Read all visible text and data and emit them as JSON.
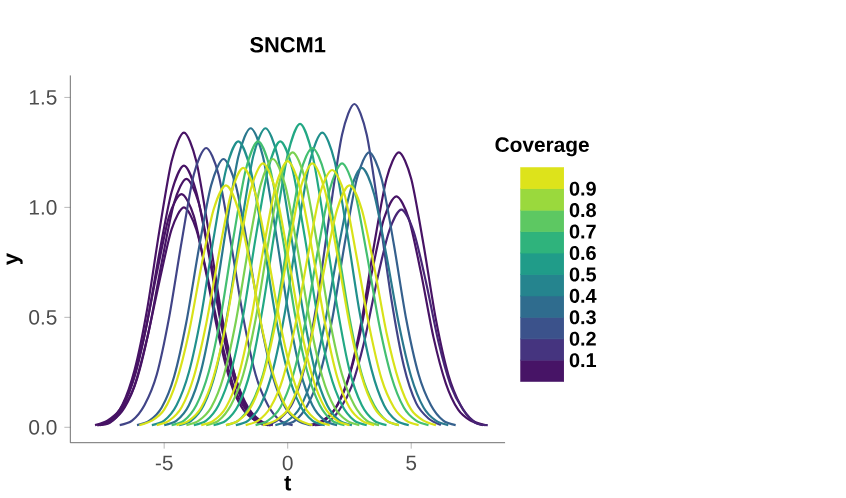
{
  "chart_data": {
    "type": "line",
    "title": "SNCM1",
    "xlabel": "t",
    "ylabel": "y",
    "clabel": "Coverage",
    "clim": [
      0,
      1
    ],
    "cticks": [
      0.1,
      0.2,
      0.3,
      0.4,
      0.5,
      0.6,
      0.7,
      0.8,
      0.9
    ],
    "xlim": [
      -8.8,
      8.8
    ],
    "ylim": [
      -0.07,
      1.6
    ],
    "xticks": [
      -5,
      0,
      5
    ],
    "yticks": [
      {
        "value": 0,
        "label": "0.0"
      },
      0.5,
      {
        "value": 1,
        "label": "1.0"
      },
      1.5
    ],
    "series": [
      {
        "color": "#471365",
        "x": [
          -7.7,
          -7.2,
          -6.7,
          -6.2,
          -5.7,
          -5.2,
          -4.7,
          -4.2,
          -3.7,
          -3.2,
          -2.7,
          -2.2,
          -1.7,
          -1.2,
          -0.7
        ],
        "values": [
          0.01,
          0.03,
          0.1,
          0.26,
          0.53,
          0.89,
          1.21,
          1.34,
          1.21,
          0.89,
          0.53,
          0.26,
          0.1,
          0.03,
          0.01
        ]
      },
      {
        "color": "#471365",
        "x": [
          -7.7,
          -7.2,
          -6.7,
          -6.2,
          -5.7,
          -5.2,
          -4.7,
          -4.2,
          -3.7,
          -3.2,
          -2.7,
          -2.2,
          -1.7,
          -1.2,
          -0.7
        ],
        "values": [
          0.01,
          0.03,
          0.09,
          0.23,
          0.47,
          0.79,
          1.07,
          1.19,
          1.07,
          0.79,
          0.47,
          0.23,
          0.09,
          0.03,
          0.01
        ]
      },
      {
        "color": "#471365",
        "x": [
          -7.6,
          -7.1,
          -6.6,
          -6.1,
          -5.6,
          -5.1,
          -4.6,
          -4.1,
          -3.6,
          -3.1,
          -2.6,
          -2.1,
          -1.6,
          -1.1,
          -0.6
        ],
        "values": [
          0.01,
          0.03,
          0.09,
          0.22,
          0.45,
          0.75,
          1.02,
          1.13,
          1.02,
          0.75,
          0.45,
          0.22,
          0.09,
          0.03,
          0.01
        ]
      },
      {
        "color": "#471365",
        "x": [
          -7.8,
          -7.3,
          -6.8,
          -6.3,
          -5.8,
          -5.3,
          -4.8,
          -4.3,
          -3.8,
          -3.3,
          -2.8,
          -2.3,
          -1.8,
          -1.3,
          -0.8
        ],
        "values": [
          0.01,
          0.03,
          0.08,
          0.2,
          0.42,
          0.7,
          0.96,
          1.06,
          0.96,
          0.7,
          0.42,
          0.2,
          0.08,
          0.03,
          0.01
        ]
      },
      {
        "color": "#471365",
        "x": [
          -7.7,
          -7.2,
          -6.7,
          -6.2,
          -5.7,
          -5.2,
          -4.7,
          -4.2,
          -3.7,
          -3.2,
          -2.7,
          -2.2,
          -1.7,
          -1.2,
          -0.7
        ],
        "values": [
          0.01,
          0.02,
          0.08,
          0.19,
          0.4,
          0.66,
          0.9,
          1.0,
          0.9,
          0.66,
          0.4,
          0.19,
          0.08,
          0.02,
          0.01
        ]
      },
      {
        "color": "#471365",
        "x": [
          1,
          1.5,
          2,
          2.5,
          3,
          3.5,
          4,
          4.5,
          5,
          5.5,
          6,
          6.5,
          7,
          7.5,
          8
        ],
        "values": [
          0.01,
          0.03,
          0.1,
          0.24,
          0.49,
          0.83,
          1.13,
          1.25,
          1.13,
          0.83,
          0.49,
          0.24,
          0.1,
          0.03,
          0.01
        ]
      },
      {
        "color": "#471365",
        "x": [
          0.9,
          1.4,
          1.9,
          2.4,
          2.9,
          3.4,
          3.9,
          4.4,
          4.9,
          5.4,
          5.9,
          6.4,
          6.9,
          7.4,
          7.9
        ],
        "values": [
          0.01,
          0.03,
          0.08,
          0.2,
          0.41,
          0.7,
          0.95,
          1.05,
          0.95,
          0.7,
          0.41,
          0.2,
          0.08,
          0.03,
          0.01
        ]
      },
      {
        "color": "#482576",
        "x": [
          1.1,
          1.6,
          2.1,
          2.6,
          3.1,
          3.6,
          4.1,
          4.6,
          5.1,
          5.6,
          6.1,
          6.6,
          7.1,
          7.6,
          8.1
        ],
        "values": [
          0.01,
          0.02,
          0.08,
          0.19,
          0.39,
          0.66,
          0.89,
          0.99,
          0.89,
          0.66,
          0.39,
          0.19,
          0.08,
          0.02,
          0.01
        ]
      },
      {
        "color": "#414487",
        "x": [
          -0.8,
          -0.3,
          0.2,
          0.7,
          1.2,
          1.7,
          2.2,
          2.7,
          3.2,
          3.7,
          4.2,
          4.7,
          5.2,
          5.7,
          6.2
        ],
        "values": [
          0.01,
          0.04,
          0.11,
          0.28,
          0.58,
          0.97,
          1.33,
          1.47,
          1.33,
          0.97,
          0.58,
          0.28,
          0.11,
          0.04,
          0.01
        ]
      },
      {
        "color": "#414487",
        "x": [
          -6.8,
          -6.3,
          -5.8,
          -5.3,
          -4.8,
          -4.3,
          -3.8,
          -3.3,
          -2.8,
          -2.3,
          -1.8,
          -1.3,
          -0.8,
          -0.3,
          0.2
        ],
        "values": [
          0.01,
          0.03,
          0.1,
          0.24,
          0.5,
          0.84,
          1.15,
          1.27,
          1.15,
          0.84,
          0.5,
          0.24,
          0.1,
          0.03,
          0.01
        ]
      },
      {
        "color": "#35608D",
        "x": [
          -0.2,
          0.3,
          0.8,
          1.3,
          1.8,
          2.3,
          2.8,
          3.3,
          3.8,
          4.3,
          4.8,
          5.3,
          5.8,
          6.3,
          6.8
        ],
        "values": [
          0.01,
          0.03,
          0.1,
          0.24,
          0.49,
          0.83,
          1.13,
          1.25,
          1.13,
          0.83,
          0.49,
          0.24,
          0.1,
          0.03,
          0.01
        ]
      },
      {
        "color": "#35608D",
        "x": [
          -6.1,
          -5.6,
          -5.1,
          -4.6,
          -4.1,
          -3.6,
          -3.1,
          -2.6,
          -2.1,
          -1.6,
          -1.1,
          -0.6,
          -0.1,
          0.4,
          0.9
        ],
        "values": [
          0.01,
          0.03,
          0.09,
          0.23,
          0.48,
          0.81,
          1.1,
          1.22,
          1.1,
          0.81,
          0.48,
          0.23,
          0.09,
          0.03,
          0.01
        ]
      },
      {
        "color": "#2A788E",
        "x": [
          -5,
          -4.5,
          -4,
          -3.5,
          -3,
          -2.5,
          -2,
          -1.5,
          -1,
          -0.5,
          0,
          0.5,
          1,
          1.5,
          2
        ],
        "values": [
          0.01,
          0.03,
          0.1,
          0.26,
          0.54,
          0.9,
          1.23,
          1.36,
          1.23,
          0.9,
          0.54,
          0.26,
          0.1,
          0.03,
          0.01
        ]
      },
      {
        "color": "#2A788E",
        "x": [
          -0.5,
          0,
          0.5,
          1,
          1.5,
          2,
          2.5,
          3,
          3.5,
          4,
          4.5,
          5,
          5.5,
          6,
          6.5
        ],
        "values": [
          0.01,
          0.03,
          0.09,
          0.23,
          0.47,
          0.78,
          1.06,
          1.18,
          1.06,
          0.78,
          0.47,
          0.23,
          0.09,
          0.03,
          0.01
        ]
      },
      {
        "color": "#21908C",
        "x": [
          -4.4,
          -3.9,
          -3.4,
          -2.9,
          -2.4,
          -1.9,
          -1.4,
          -0.9,
          -0.4,
          0.1,
          0.6,
          1.1,
          1.6,
          2.1,
          2.6
        ],
        "values": [
          0.01,
          0.03,
          0.1,
          0.26,
          0.54,
          0.9,
          1.23,
          1.36,
          1.23,
          0.9,
          0.54,
          0.26,
          0.1,
          0.03,
          0.01
        ]
      },
      {
        "color": "#21908C",
        "x": [
          -2.1,
          -1.6,
          -1.1,
          -0.6,
          -0.1,
          0.4,
          0.9,
          1.4,
          1.9,
          2.4,
          2.9,
          3.4,
          3.9,
          4.4,
          4.9
        ],
        "values": [
          0.01,
          0.03,
          0.1,
          0.26,
          0.53,
          0.89,
          1.21,
          1.34,
          1.21,
          0.89,
          0.53,
          0.26,
          0.1,
          0.03,
          0.01
        ]
      },
      {
        "color": "#21908C",
        "x": [
          -5.5,
          -5,
          -4.5,
          -4,
          -3.5,
          -3,
          -2.5,
          -2,
          -1.5,
          -1,
          -0.5,
          0,
          0.5,
          1,
          1.5
        ],
        "values": [
          0.01,
          0.03,
          0.1,
          0.25,
          0.51,
          0.86,
          1.17,
          1.3,
          1.17,
          0.86,
          0.51,
          0.25,
          0.1,
          0.03,
          0.01
        ]
      },
      {
        "color": "#22A884",
        "x": [
          -3,
          -2.5,
          -2,
          -1.5,
          -1,
          -0.5,
          0,
          0.5,
          1,
          1.5,
          2,
          2.5,
          3,
          3.5,
          4
        ],
        "values": [
          0.01,
          0.03,
          0.1,
          0.26,
          0.55,
          0.91,
          1.24,
          1.38,
          1.24,
          0.91,
          0.55,
          0.26,
          0.1,
          0.03,
          0.01
        ]
      },
      {
        "color": "#22A884",
        "x": [
          -3.8,
          -3.3,
          -2.8,
          -2.3,
          -1.8,
          -1.3,
          -0.8,
          -0.3,
          0.2,
          0.7,
          1.2,
          1.7,
          2.2,
          2.7,
          3.2
        ],
        "values": [
          0.01,
          0.03,
          0.1,
          0.25,
          0.51,
          0.86,
          1.17,
          1.3,
          1.17,
          0.86,
          0.51,
          0.25,
          0.1,
          0.03,
          0.01
        ]
      },
      {
        "color": "#43BF71",
        "x": [
          -2.5,
          -2,
          -1.5,
          -1,
          -0.5,
          0,
          0.5,
          1,
          1.5,
          2,
          2.5,
          3,
          3.5,
          4,
          4.5
        ],
        "values": [
          0.01,
          0.03,
          0.1,
          0.24,
          0.5,
          0.84,
          1.15,
          1.27,
          1.15,
          0.84,
          0.5,
          0.24,
          0.1,
          0.03,
          0.01
        ]
      },
      {
        "color": "#43BF71",
        "x": [
          -4.7,
          -4.2,
          -3.7,
          -3.2,
          -2.7,
          -2.2,
          -1.7,
          -1.2,
          -0.7,
          -0.2,
          0.3,
          0.8,
          1.3,
          1.8,
          2.3
        ],
        "values": [
          0.01,
          0.03,
          0.1,
          0.25,
          0.51,
          0.86,
          1.17,
          1.3,
          1.17,
          0.86,
          0.51,
          0.25,
          0.1,
          0.03,
          0.01
        ]
      },
      {
        "color": "#43BF71",
        "x": [
          -1.3,
          -0.8,
          -0.3,
          0.2,
          0.7,
          1.2,
          1.7,
          2.2,
          2.7,
          3.2,
          3.7,
          4.2,
          4.7,
          5.2,
          5.7
        ],
        "values": [
          0.01,
          0.03,
          0.09,
          0.23,
          0.47,
          0.79,
          1.08,
          1.2,
          1.08,
          0.79,
          0.47,
          0.23,
          0.09,
          0.03,
          0.01
        ]
      },
      {
        "color": "#7AD151",
        "x": [
          -3.3,
          -2.8,
          -2.3,
          -1.8,
          -1.3,
          -0.8,
          -0.3,
          0.2,
          0.7,
          1.2,
          1.7,
          2.2,
          2.7,
          3.2,
          3.7
        ],
        "values": [
          0.01,
          0.03,
          0.1,
          0.24,
          0.49,
          0.83,
          1.13,
          1.25,
          1.13,
          0.83,
          0.49,
          0.24,
          0.1,
          0.03,
          0.01
        ]
      },
      {
        "color": "#7AD151",
        "x": [
          -4.1,
          -3.6,
          -3.1,
          -2.6,
          -2.1,
          -1.6,
          -1.1,
          -0.6,
          -0.1,
          0.4,
          0.9,
          1.4,
          1.9,
          2.4,
          2.9
        ],
        "values": [
          0.01,
          0.03,
          0.09,
          0.23,
          0.48,
          0.81,
          1.1,
          1.22,
          1.1,
          0.81,
          0.48,
          0.23,
          0.09,
          0.03,
          0.01
        ]
      },
      {
        "color": "#D8E219",
        "x": [
          -5.3,
          -4.8,
          -4.3,
          -3.8,
          -3.3,
          -2.8,
          -2.3,
          -1.8,
          -1.3,
          -0.8,
          -0.3,
          0.2,
          0.7,
          1.2,
          1.7
        ],
        "values": [
          0.01,
          0.03,
          0.09,
          0.23,
          0.47,
          0.78,
          1.06,
          1.18,
          1.06,
          0.78,
          0.47,
          0.23,
          0.09,
          0.03,
          0.01
        ]
      },
      {
        "color": "#D8E219",
        "x": [
          -4.5,
          -4,
          -3.5,
          -3,
          -2.5,
          -2,
          -1.5,
          -1,
          -0.5,
          0,
          0.5,
          1,
          1.5,
          2,
          2.5
        ],
        "values": [
          0.01,
          0.03,
          0.09,
          0.23,
          0.47,
          0.79,
          1.08,
          1.2,
          1.08,
          0.79,
          0.47,
          0.23,
          0.09,
          0.03,
          0.01
        ]
      },
      {
        "color": "#D8E219",
        "x": [
          -3.5,
          -3,
          -2.5,
          -2,
          -1.5,
          -1,
          -0.5,
          0,
          0.5,
          1,
          1.5,
          2,
          2.5,
          3,
          3.5
        ],
        "values": [
          0.01,
          0.03,
          0.09,
          0.23,
          0.48,
          0.8,
          1.09,
          1.21,
          1.09,
          0.8,
          0.48,
          0.23,
          0.09,
          0.03,
          0.01
        ]
      },
      {
        "color": "#D8E219",
        "x": [
          -2.5,
          -2,
          -1.5,
          -1,
          -0.5,
          0,
          0.5,
          1,
          1.5,
          2,
          2.5,
          3,
          3.5,
          4,
          4.5
        ],
        "values": [
          0.01,
          0.03,
          0.09,
          0.23,
          0.47,
          0.79,
          1.08,
          1.2,
          1.08,
          0.79,
          0.47,
          0.23,
          0.09,
          0.03,
          0.01
        ]
      },
      {
        "color": "#D8E219",
        "x": [
          -1.7,
          -1.2,
          -0.7,
          -0.2,
          0.3,
          0.8,
          1.3,
          1.8,
          2.3,
          2.8,
          3.3,
          3.8,
          4.3,
          4.8,
          5.3
        ],
        "values": [
          0.01,
          0.03,
          0.09,
          0.22,
          0.46,
          0.77,
          1.06,
          1.17,
          1.06,
          0.77,
          0.46,
          0.22,
          0.09,
          0.03,
          0.01
        ]
      },
      {
        "color": "#D8E219",
        "x": [
          -6,
          -5.5,
          -5,
          -4.5,
          -4,
          -3.5,
          -3,
          -2.5,
          -2,
          -1.5,
          -1,
          -0.5,
          0,
          0.5,
          1
        ],
        "values": [
          0.01,
          0.03,
          0.08,
          0.21,
          0.43,
          0.73,
          0.99,
          1.1,
          0.99,
          0.73,
          0.43,
          0.21,
          0.08,
          0.03,
          0.01
        ]
      },
      {
        "color": "#D8E219",
        "x": [
          -1,
          -0.5,
          0,
          0.5,
          1,
          1.5,
          2,
          2.5,
          3,
          3.5,
          4,
          4.5,
          5,
          5.5,
          6
        ],
        "values": [
          0.01,
          0.03,
          0.08,
          0.21,
          0.43,
          0.73,
          0.99,
          1.1,
          0.99,
          0.73,
          0.43,
          0.21,
          0.08,
          0.03,
          0.01
        ]
      }
    ]
  }
}
